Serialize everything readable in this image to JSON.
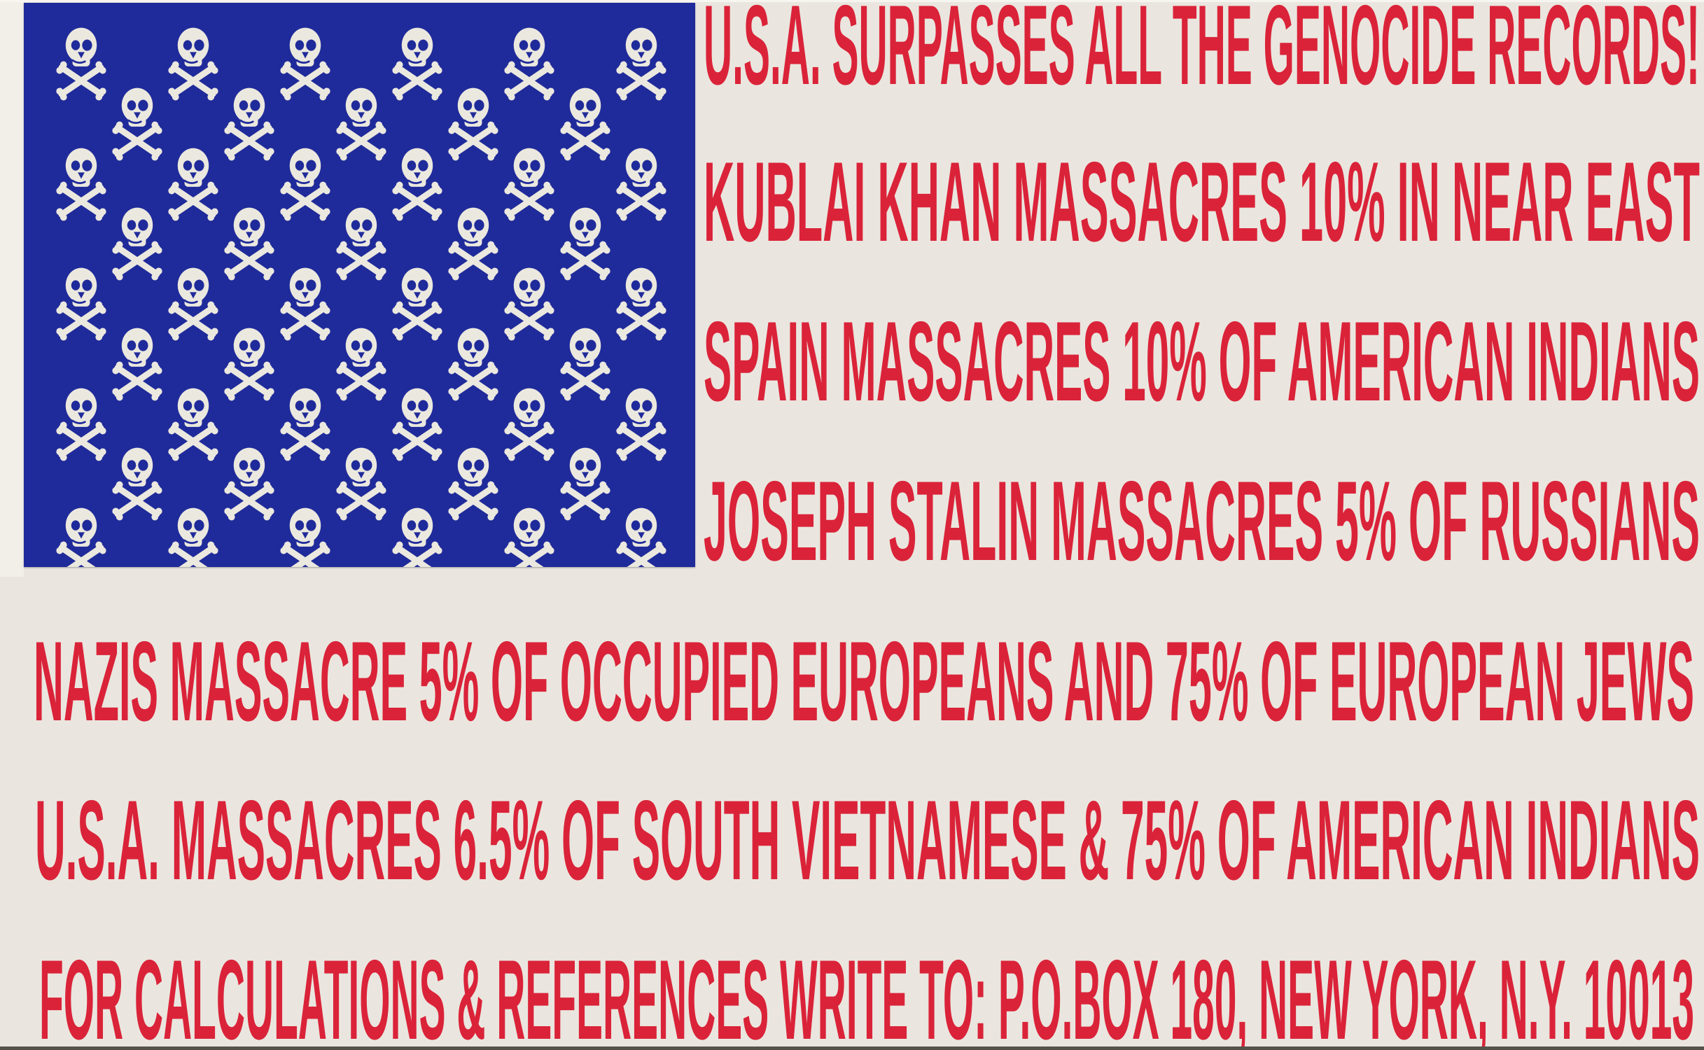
{
  "poster": {
    "description": "Anti-war flag poster: blue canton of 50 skull-and-crossbones with red condensed text stripes",
    "lines": [
      "U.S.A. SURPASSES ALL THE GENOCIDE RECORDS!",
      "KUBLAI KHAN MASSACRES 10% IN NEAR EAST",
      "SPAIN MASSACRES 10% OF AMERICAN INDIANS",
      "JOSEPH STALIN MASSACRES 5% OF RUSSIANS",
      "NAZIS MASSACRE 5% OF OCCUPIED EUROPEANS AND 75% OF EUROPEAN JEWS",
      "U.S.A. MASSACRES 6.5% OF SOUTH VIETNAMESE & 75% OF AMERICAN INDIANS",
      "FOR CALCULATIONS & REFERENCES WRITE TO: P.O.BOX 180, NEW YORK, N.Y. 10013"
    ],
    "flag": {
      "skull_rows": [
        6,
        5,
        6,
        5,
        6,
        5,
        6,
        5,
        6
      ],
      "skull_total": 50,
      "icon": "skull-crossbones-icon"
    },
    "colors": {
      "red": "#da2339",
      "blue": "#1f2b9a",
      "background": "#eae6df",
      "bone": "#ebe8df",
      "bottom_edge": "#55524a"
    }
  }
}
